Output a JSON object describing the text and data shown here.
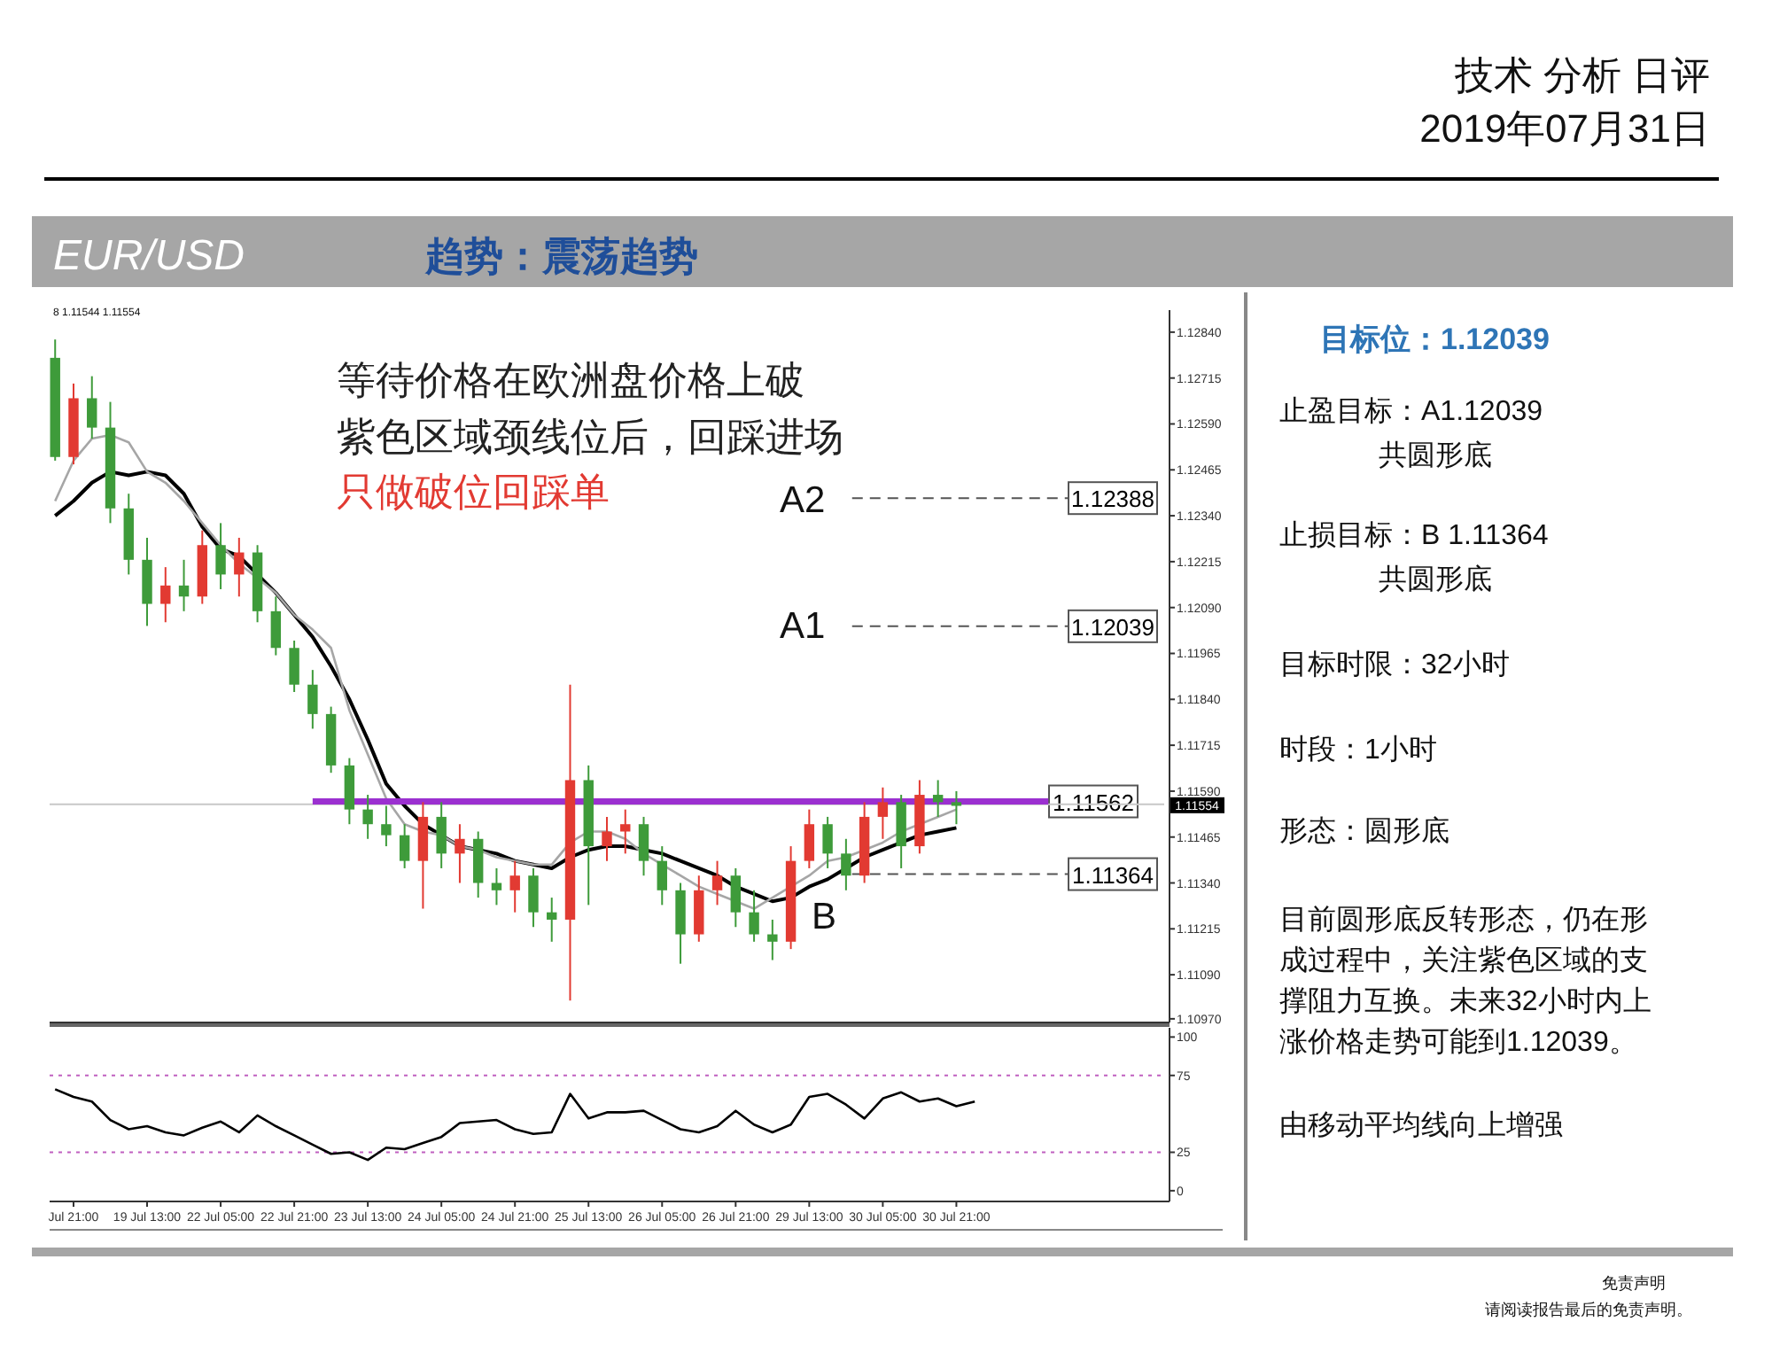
{
  "chart_data": [
    {
      "type": "candlestick",
      "title": "EUR/USD",
      "subtitle": "趋势：震荡趋势",
      "categories": [
        null,
        null,
        null,
        null,
        null,
        null,
        null,
        null,
        null,
        null,
        null,
        null,
        null,
        null,
        null,
        null,
        null,
        null,
        null,
        null,
        null,
        null,
        null,
        null,
        null,
        null,
        null,
        null,
        null,
        null,
        null,
        null,
        null,
        null,
        null,
        null,
        null,
        null,
        null,
        null,
        null,
        null,
        null,
        null,
        null,
        null,
        null,
        null,
        null,
        null,
        null,
        null,
        null,
        null,
        null,
        null,
        null,
        null,
        null,
        null,
        null
      ],
      "ohlc": [
        [
          1.1277,
          1.1282,
          1.1249,
          1.125
        ],
        [
          1.125,
          1.127,
          1.1248,
          1.1266
        ],
        [
          1.1266,
          1.1272,
          1.1255,
          1.1258
        ],
        [
          1.1258,
          1.1265,
          1.1232,
          1.1236
        ],
        [
          1.1236,
          1.124,
          1.1218,
          1.1222
        ],
        [
          1.1222,
          1.1228,
          1.1204,
          1.121
        ],
        [
          1.121,
          1.122,
          1.1205,
          1.1215
        ],
        [
          1.1215,
          1.1222,
          1.1208,
          1.1212
        ],
        [
          1.1212,
          1.123,
          1.121,
          1.1226
        ],
        [
          1.1226,
          1.1232,
          1.1214,
          1.1218
        ],
        [
          1.1218,
          1.1228,
          1.1212,
          1.1224
        ],
        [
          1.1224,
          1.1226,
          1.1205,
          1.1208
        ],
        [
          1.1208,
          1.1212,
          1.1196,
          1.1198
        ],
        [
          1.1198,
          1.12,
          1.1186,
          1.1188
        ],
        [
          1.1188,
          1.1192,
          1.1176,
          1.118
        ],
        [
          1.118,
          1.1182,
          1.1164,
          1.1166
        ],
        [
          1.1166,
          1.1168,
          1.115,
          1.1154
        ],
        [
          1.1154,
          1.1158,
          1.1146,
          1.115
        ],
        [
          1.115,
          1.1155,
          1.1144,
          1.1147
        ],
        [
          1.1147,
          1.115,
          1.1138,
          1.114
        ],
        [
          1.114,
          1.1156,
          1.1127,
          1.1152
        ],
        [
          1.1152,
          1.1156,
          1.1138,
          1.1142
        ],
        [
          1.1142,
          1.115,
          1.1134,
          1.1146
        ],
        [
          1.1146,
          1.1148,
          1.113,
          1.1134
        ],
        [
          1.1134,
          1.1138,
          1.1128,
          1.1132
        ],
        [
          1.1132,
          1.114,
          1.1126,
          1.1136
        ],
        [
          1.1136,
          1.1138,
          1.1122,
          1.1126
        ],
        [
          1.1126,
          1.113,
          1.1118,
          1.1124
        ],
        [
          1.1124,
          1.1188,
          1.1102,
          1.1162
        ],
        [
          1.1162,
          1.1166,
          1.1128,
          1.1144
        ],
        [
          1.1144,
          1.1152,
          1.114,
          1.1148
        ],
        [
          1.1148,
          1.1154,
          1.1142,
          1.115
        ],
        [
          1.115,
          1.1152,
          1.1136,
          1.114
        ],
        [
          1.114,
          1.1144,
          1.1128,
          1.1132
        ],
        [
          1.1132,
          1.1134,
          1.1112,
          1.112
        ],
        [
          1.112,
          1.1136,
          1.1118,
          1.1132
        ],
        [
          1.1132,
          1.114,
          1.1128,
          1.1136
        ],
        [
          1.1136,
          1.1138,
          1.1122,
          1.1126
        ],
        [
          1.1126,
          1.1132,
          1.1118,
          1.112
        ],
        [
          1.112,
          1.1124,
          1.1113,
          1.1118
        ],
        [
          1.1118,
          1.1144,
          1.1116,
          1.114
        ],
        [
          1.114,
          1.1154,
          1.1138,
          1.115
        ],
        [
          1.115,
          1.1152,
          1.1138,
          1.1142
        ],
        [
          1.1142,
          1.1146,
          1.1132,
          1.1136
        ],
        [
          1.1136,
          1.1156,
          1.1134,
          1.1152
        ],
        [
          1.1152,
          1.116,
          1.1146,
          1.1156
        ],
        [
          1.1156,
          1.1158,
          1.1138,
          1.1144
        ],
        [
          1.1144,
          1.1162,
          1.1142,
          1.1158
        ],
        [
          1.1158,
          1.1162,
          1.1152,
          1.1156
        ],
        [
          1.1156,
          1.1159,
          1.115,
          1.1155
        ],
        null,
        null,
        null,
        null,
        null,
        null,
        null,
        null,
        null,
        null,
        null
      ],
      "series": [
        {
          "type": "line",
          "color": "#000000",
          "values": [
            1.1234,
            1.1238,
            1.1243,
            1.1246,
            1.1245,
            1.1246,
            1.1245,
            1.124,
            1.1231,
            1.1225,
            1.1223,
            1.1218,
            1.1213,
            1.1207,
            1.1201,
            1.1193,
            1.1184,
            1.1173,
            1.1161,
            1.1155,
            1.115,
            1.1147,
            1.1144,
            1.1143,
            1.1142,
            1.114,
            1.1139,
            1.1138,
            1.1141,
            1.1143,
            1.1144,
            1.1144,
            1.1143,
            1.1142,
            1.114,
            1.1138,
            1.1136,
            1.1133,
            1.1131,
            1.1129,
            1.113,
            1.1133,
            1.1135,
            1.1138,
            1.1141,
            1.1143,
            1.1145,
            1.1147,
            1.1148,
            1.1149,
            null,
            null,
            null,
            null,
            null,
            null,
            null,
            null,
            null,
            null,
            null
          ]
        },
        {
          "type": "line",
          "color": "#a6a6a6",
          "values": [
            1.1238,
            1.1249,
            1.1255,
            1.1256,
            1.1254,
            1.1246,
            1.1243,
            1.1238,
            1.1232,
            1.1226,
            1.1221,
            1.1217,
            1.1213,
            1.1207,
            1.1203,
            1.1198,
            1.1181,
            1.1169,
            1.1157,
            1.115,
            1.1148,
            1.1147,
            1.1144,
            1.1143,
            1.1141,
            1.114,
            1.1139,
            1.1139,
            1.1145,
            1.1148,
            1.1148,
            1.1146,
            1.1142,
            1.1139,
            1.1136,
            1.1133,
            1.1131,
            1.1129,
            1.1127,
            1.113,
            1.1133,
            1.1136,
            1.114,
            1.1141,
            1.1143,
            1.1145,
            1.1148,
            1.115,
            1.1152,
            1.1154,
            null,
            null,
            null,
            null,
            null,
            null,
            null,
            null,
            null,
            null,
            null
          ]
        },
        {
          "type": "line",
          "color": "#9b30d0",
          "values": [
            null,
            null,
            null,
            null,
            null,
            null,
            null,
            null,
            null,
            null,
            null,
            null,
            null,
            null,
            1.11562,
            1.11562,
            1.11562,
            1.11562,
            1.11562,
            1.11562,
            1.11562,
            1.11562,
            1.11562,
            1.11562,
            1.11562,
            1.11562,
            1.11562,
            1.11562,
            1.11562,
            1.11562,
            1.11562,
            1.11562,
            1.11562,
            1.11562,
            1.11562,
            1.11562,
            1.11562,
            1.11562,
            1.11562,
            1.11562,
            1.11562,
            1.11562,
            1.11562,
            1.11562,
            1.11562,
            1.11562,
            1.11562,
            1.11562,
            1.11562,
            1.11562,
            1.11562,
            1.11562,
            1.11562,
            1.11562,
            1.11562,
            null,
            null,
            null,
            null,
            null,
            null
          ]
        }
      ],
      "ylim": [
        1.1096,
        1.129
      ],
      "yticks": [
        {
          "value": 1.1284,
          "label": "1.12840"
        },
        {
          "value": 1.12715,
          "label": "1.12715"
        },
        {
          "value": 1.1259,
          "label": "1.12590"
        },
        {
          "value": 1.12465,
          "label": "1.12465"
        },
        {
          "value": 1.1234,
          "label": "1.12340"
        },
        {
          "value": 1.12215,
          "label": "1.12215"
        },
        {
          "value": 1.1209,
          "label": "1.12090"
        },
        {
          "value": 1.11965,
          "label": "1.11965"
        },
        {
          "value": 1.1184,
          "label": "1.11840"
        },
        {
          "value": 1.11715,
          "label": "1.11715"
        },
        {
          "value": 1.1159,
          "label": "1.11590"
        },
        {
          "value": 1.11465,
          "label": "1.11465"
        },
        {
          "value": 1.1134,
          "label": "1.11340"
        },
        {
          "value": 1.11215,
          "label": "1.11215"
        },
        {
          "value": 1.1109,
          "label": "1.11090"
        },
        {
          "value": 1.1097,
          "label": "1.10970"
        }
      ],
      "tick_labels": "y",
      "ref_lines": [
        {
          "axis": "y",
          "value": 1.12388,
          "label": "1.12388",
          "line_style": "dashed",
          "color": "#555555"
        },
        {
          "axis": "y",
          "value": 1.12039,
          "label": "1.12039",
          "line_style": "dashed",
          "color": "#555555"
        },
        {
          "axis": "y",
          "value": 1.11364,
          "label": "1.11364",
          "line_style": "dashed",
          "color": "#555555"
        },
        {
          "axis": "y",
          "value": 1.11554,
          "label": "1.11554",
          "line_style": "solid",
          "color": "#c8c8c8"
        }
      ],
      "annotations": [
        "技术 分析 日评",
        "2019年07月31日",
        "8 1.11544 1.11554",
        "等待价格在欧洲盘价格上破",
        "紫色区域颈线位后，回踩进场",
        "只做破位回踩单",
        "A2",
        "A1",
        "B",
        {
          "text": "1.11562",
          "y": 1.11562
        },
        "目标位：1.12039",
        "止盈目标：A1.12039",
        "共圆形底",
        "止损目标：B 1.11364",
        "共圆形底",
        "目标时限：32小时",
        "时段：1小时",
        "形态：圆形底",
        "目前圆形底反转形态，仍在形成过程中，关注紫色区域的支撑阻力互换。未来32小时内上涨价格走势可能到1.12039。",
        "由移动平均线向上增强",
        "免责声明",
        "请阅读报告最后的免责声明。"
      ]
    },
    {
      "type": "line",
      "color": "#000000",
      "categories": [
        null,
        "Jul 21:00",
        null,
        null,
        null,
        "19 Jul 13:00",
        null,
        null,
        null,
        "22 Jul 05:00",
        null,
        null,
        null,
        "22 Jul 21:00",
        null,
        null,
        null,
        "23 Jul 13:00",
        null,
        null,
        null,
        "24 Jul 05:00",
        null,
        null,
        null,
        "24 Jul 21:00",
        null,
        null,
        null,
        "25 Jul 13:00",
        null,
        null,
        null,
        "26 Jul 05:00",
        null,
        null,
        null,
        "26 Jul 21:00",
        null,
        null,
        null,
        "29 Jul 13:00",
        null,
        null,
        null,
        "30 Jul 05:00",
        null,
        null,
        null,
        "30 Jul 21:00",
        null,
        null,
        null,
        null,
        null,
        null,
        null,
        null,
        null,
        null,
        null
      ],
      "values": [
        66,
        61,
        58,
        46,
        40,
        42,
        38,
        36,
        41,
        45,
        38,
        49,
        42,
        36,
        30,
        24,
        25,
        20,
        28,
        27,
        31,
        35,
        44,
        45,
        46,
        40,
        37,
        38,
        63,
        47,
        51,
        51,
        52,
        46,
        40,
        38,
        42,
        52,
        43,
        38,
        43,
        61,
        63,
        56,
        47,
        60,
        64,
        58,
        60,
        55,
        58,
        null,
        null,
        null,
        null,
        null,
        null,
        null,
        null,
        null,
        null
      ],
      "ylim": [
        -7,
        106
      ],
      "yticks": [
        0,
        25,
        75,
        100
      ],
      "ref_lines": [
        {
          "axis": "y",
          "value": 75,
          "line_style": "dotted",
          "color": "#c060c0"
        },
        {
          "axis": "y",
          "value": 25,
          "line_style": "dotted",
          "color": "#c060c0"
        }
      ]
    }
  ]
}
